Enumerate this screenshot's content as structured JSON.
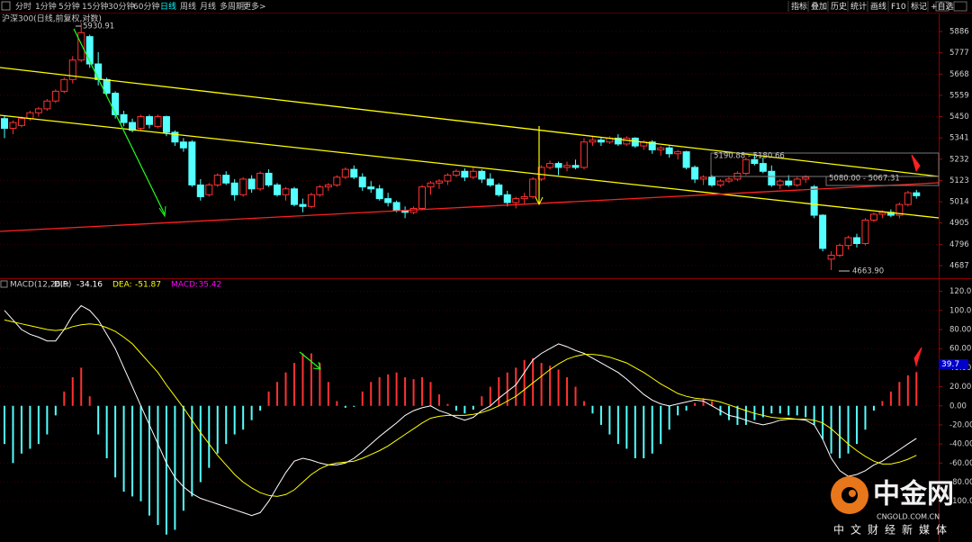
{
  "toolbar": {
    "tabs": [
      "分时",
      "1分钟",
      "5分钟",
      "15分钟",
      "30分钟",
      "60分钟",
      "日线",
      "周线",
      "月线",
      "多周期",
      "更多>"
    ],
    "buttons": [
      "指标",
      "叠加",
      "历史",
      "统计",
      "画线",
      "F10",
      "标记",
      "+自选"
    ]
  },
  "chart_data": [
    {
      "type": "candlestick",
      "title": "沪深300(日线,前复权,对数)",
      "colors": {
        "up": "#ff3232",
        "down": "#54ffff"
      },
      "ylim": [
        4627,
        5983
      ],
      "yticks": [
        5886,
        5777,
        5668,
        5559,
        5450,
        5341,
        5232,
        5123,
        5014,
        4905,
        4796,
        4687
      ],
      "grid": true,
      "annotations": [
        "5930.91",
        "5190.88 - 5180.66",
        "5080.00 - 5067.31",
        "4663.90"
      ],
      "ohlc": [
        [
          5440,
          5455,
          5340,
          5390
        ],
        [
          5390,
          5430,
          5360,
          5420
        ],
        [
          5405,
          5450,
          5395,
          5440
        ],
        [
          5440,
          5480,
          5430,
          5470
        ],
        [
          5470,
          5500,
          5450,
          5490
        ],
        [
          5490,
          5540,
          5480,
          5530
        ],
        [
          5530,
          5590,
          5520,
          5580
        ],
        [
          5580,
          5650,
          5570,
          5640
        ],
        [
          5640,
          5760,
          5620,
          5740
        ],
        [
          5740,
          5931,
          5730,
          5880
        ],
        [
          5860,
          5870,
          5700,
          5720
        ],
        [
          5720,
          5780,
          5610,
          5640
        ],
        [
          5640,
          5650,
          5560,
          5570
        ],
        [
          5570,
          5580,
          5440,
          5460
        ],
        [
          5460,
          5480,
          5400,
          5420
        ],
        [
          5420,
          5440,
          5370,
          5380
        ],
        [
          5390,
          5460,
          5380,
          5450
        ],
        [
          5450,
          5460,
          5390,
          5410
        ],
        [
          5400,
          5460,
          5390,
          5450
        ],
        [
          5450,
          5455,
          5350,
          5370
        ],
        [
          5370,
          5380,
          5300,
          5320
        ],
        [
          5320,
          5340,
          5270,
          5290
        ],
        [
          5320,
          5330,
          5090,
          5100
        ],
        [
          5100,
          5130,
          5020,
          5040
        ],
        [
          5050,
          5110,
          5040,
          5100
        ],
        [
          5100,
          5160,
          5090,
          5150
        ],
        [
          5150,
          5170,
          5100,
          5110
        ],
        [
          5110,
          5130,
          5020,
          5050
        ],
        [
          5050,
          5140,
          5040,
          5130
        ],
        [
          5130,
          5150,
          5060,
          5080
        ],
        [
          5080,
          5170,
          5070,
          5160
        ],
        [
          5160,
          5180,
          5090,
          5100
        ],
        [
          5100,
          5110,
          5040,
          5050
        ],
        [
          5050,
          5090,
          5020,
          5080
        ],
        [
          5080,
          5090,
          4990,
          5000
        ],
        [
          5000,
          5030,
          4960,
          4990
        ],
        [
          4990,
          5060,
          4980,
          5050
        ],
        [
          5050,
          5100,
          5040,
          5090
        ],
        [
          5090,
          5110,
          5070,
          5100
        ],
        [
          5100,
          5150,
          5090,
          5140
        ],
        [
          5140,
          5190,
          5130,
          5180
        ],
        [
          5180,
          5200,
          5130,
          5140
        ],
        [
          5140,
          5160,
          5070,
          5090
        ],
        [
          5090,
          5120,
          5060,
          5080
        ],
        [
          5080,
          5100,
          5020,
          5030
        ],
        [
          5030,
          5060,
          4990,
          5010
        ],
        [
          5010,
          5020,
          4960,
          4970
        ],
        [
          4970,
          4990,
          4930,
          4960
        ],
        [
          4960,
          4990,
          4950,
          4980
        ],
        [
          4980,
          5100,
          4970,
          5090
        ],
        [
          5090,
          5120,
          5050,
          5110
        ],
        [
          5110,
          5130,
          5080,
          5120
        ],
        [
          5120,
          5160,
          5100,
          5150
        ],
        [
          5150,
          5180,
          5140,
          5170
        ],
        [
          5170,
          5185,
          5120,
          5140
        ],
        [
          5140,
          5190,
          5130,
          5170
        ],
        [
          5170,
          5180,
          5110,
          5130
        ],
        [
          5130,
          5160,
          5090,
          5100
        ],
        [
          5100,
          5110,
          5040,
          5050
        ],
        [
          5050,
          5070,
          4990,
          5010
        ],
        [
          5010,
          5040,
          4980,
          5030
        ],
        [
          5030,
          5060,
          5000,
          5040
        ],
        [
          5040,
          5140,
          5030,
          5130
        ],
        [
          5130,
          5200,
          5120,
          5190
        ],
        [
          5190,
          5225,
          5180,
          5210
        ],
        [
          5210,
          5220,
          5150,
          5190
        ],
        [
          5190,
          5220,
          5170,
          5200
        ],
        [
          5200,
          5230,
          5180,
          5190
        ],
        [
          5190,
          5340,
          5180,
          5320
        ],
        [
          5320,
          5350,
          5300,
          5330
        ],
        [
          5330,
          5345,
          5300,
          5320
        ],
        [
          5320,
          5350,
          5310,
          5340
        ],
        [
          5340,
          5360,
          5300,
          5310
        ],
        [
          5310,
          5350,
          5300,
          5340
        ],
        [
          5340,
          5345,
          5290,
          5300
        ],
        [
          5300,
          5330,
          5280,
          5320
        ],
        [
          5320,
          5330,
          5260,
          5280
        ],
        [
          5280,
          5300,
          5250,
          5290
        ],
        [
          5290,
          5300,
          5240,
          5260
        ],
        [
          5260,
          5280,
          5230,
          5270
        ],
        [
          5270,
          5275,
          5180,
          5190
        ],
        [
          5190,
          5200,
          5110,
          5130
        ],
        [
          5130,
          5150,
          5100,
          5140
        ],
        [
          5140,
          5150,
          5090,
          5100
        ],
        [
          5100,
          5130,
          5090,
          5120
        ],
        [
          5120,
          5140,
          5110,
          5130
        ],
        [
          5130,
          5170,
          5120,
          5160
        ],
        [
          5160,
          5240,
          5150,
          5230
        ],
        [
          5230,
          5250,
          5200,
          5210
        ],
        [
          5210,
          5240,
          5160,
          5170
        ],
        [
          5170,
          5200,
          5090,
          5100
        ],
        [
          5100,
          5130,
          5080,
          5120
        ],
        [
          5120,
          5150,
          5090,
          5100
        ],
        [
          5100,
          5140,
          5090,
          5130
        ],
        [
          5130,
          5150,
          5110,
          5140
        ],
        [
          5090,
          5100,
          4930,
          4945
        ],
        [
          4945,
          4950,
          4760,
          4775
        ],
        [
          4720,
          4760,
          4664,
          4740
        ],
        [
          4740,
          4800,
          4730,
          4790
        ],
        [
          4790,
          4840,
          4770,
          4830
        ],
        [
          4830,
          4850,
          4780,
          4800
        ],
        [
          4800,
          4930,
          4790,
          4920
        ],
        [
          4920,
          4960,
          4910,
          4950
        ],
        [
          4950,
          4970,
          4930,
          4960
        ],
        [
          4960,
          4975,
          4935,
          4945
        ],
        [
          4945,
          5010,
          4930,
          5000
        ],
        [
          5000,
          5070,
          4990,
          5060
        ],
        [
          5060,
          5075,
          5030,
          5045
        ]
      ]
    },
    {
      "type": "macd",
      "title": "MACD(12,26,9)",
      "cursor_label": "39.7",
      "ylim": [
        -139,
        131
      ],
      "yticks": [
        {
          "value": 120,
          "label": "120.00"
        },
        {
          "value": 100,
          "label": "100.00"
        },
        {
          "value": 80,
          "label": "80.00"
        },
        {
          "value": 60,
          "label": "60.00"
        },
        {
          "value": 40,
          "label": "40.00"
        },
        {
          "value": 20,
          "label": "20.00"
        },
        {
          "value": 0,
          "label": "0.00"
        },
        {
          "value": -20,
          "label": "-20.00"
        },
        {
          "value": -40,
          "label": "-40.00"
        },
        {
          "value": -60,
          "label": "-60.00"
        },
        {
          "value": -80,
          "label": "-80.00"
        },
        {
          "value": -100,
          "label": "-100.00"
        }
      ],
      "series": [
        {
          "name": "DIF:",
          "kind": "line",
          "color": "#ffffff",
          "values": [
            100,
            90,
            80,
            75,
            72,
            68,
            68,
            80,
            95,
            105,
            100,
            90,
            75,
            60,
            40,
            20,
            0,
            -20,
            -40,
            -60,
            -75,
            -85,
            -92,
            -97,
            -100,
            -103,
            -106,
            -109,
            -112,
            -115,
            -112,
            -100,
            -85,
            -70,
            -58,
            -55,
            -57,
            -60,
            -62,
            -62,
            -60,
            -55,
            -48,
            -40,
            -32,
            -25,
            -18,
            -10,
            -5,
            -2,
            0,
            -5,
            -8,
            -12,
            -15,
            -12,
            -5,
            0,
            8,
            15,
            22,
            35,
            48,
            55,
            60,
            65,
            62,
            58,
            55,
            50,
            45,
            40,
            35,
            28,
            20,
            12,
            6,
            2,
            0,
            2,
            4,
            6,
            5,
            0,
            -5,
            -10,
            -12,
            -15,
            -18,
            -20,
            -18,
            -15,
            -14,
            -14,
            -15,
            -20,
            -35,
            -55,
            -68,
            -74,
            -72,
            -68,
            -62,
            -58,
            -52,
            -46,
            -40,
            -34.16
          ]
        },
        {
          "name": "DEA:",
          "kind": "line",
          "color": "#ffff00",
          "values": [
            90,
            88,
            86,
            84,
            82,
            80,
            79,
            80,
            83,
            85,
            86,
            85,
            82,
            78,
            72,
            65,
            55,
            45,
            35,
            22,
            10,
            -2,
            -15,
            -28,
            -40,
            -52,
            -62,
            -72,
            -80,
            -86,
            -91,
            -94,
            -95,
            -93,
            -88,
            -80,
            -72,
            -66,
            -62,
            -60,
            -59,
            -58,
            -55,
            -51,
            -47,
            -42,
            -36,
            -30,
            -24,
            -18,
            -13,
            -11,
            -10,
            -10,
            -10,
            -9,
            -7,
            -4,
            0,
            5,
            10,
            17,
            24,
            31,
            38,
            44,
            49,
            52,
            54,
            54,
            53,
            51,
            48,
            45,
            40,
            35,
            29,
            23,
            18,
            13,
            10,
            8,
            7,
            6,
            4,
            1,
            -2,
            -5,
            -8,
            -10,
            -12,
            -13,
            -13,
            -14,
            -14,
            -15,
            -18,
            -24,
            -32,
            -40,
            -47,
            -53,
            -58,
            -61,
            -61,
            -59,
            -56,
            -51.87
          ]
        },
        {
          "name": "MACD:",
          "kind": "bar",
          "color": "#ff00ff",
          "colors": {
            "up": "#ff3232",
            "down": "#54ffff"
          },
          "values": [
            -40,
            -60,
            -50,
            -45,
            -40,
            -30,
            -10,
            15,
            30,
            40,
            10,
            -30,
            -55,
            -75,
            -90,
            -95,
            -100,
            -115,
            -125,
            -135,
            -130,
            -110,
            -95,
            -80,
            -65,
            -50,
            -40,
            -30,
            -25,
            -15,
            -5,
            15,
            25,
            35,
            45,
            55,
            55,
            45,
            25,
            5,
            -2,
            -1,
            15,
            25,
            30,
            33,
            35,
            30,
            28,
            30,
            25,
            12,
            2,
            -5,
            -8,
            -4,
            10,
            20,
            30,
            35,
            40,
            48,
            50,
            45,
            42,
            38,
            30,
            20,
            5,
            -8,
            -20,
            -30,
            -40,
            -45,
            -55,
            -55,
            -50,
            -40,
            -25,
            -10,
            -5,
            3,
            8,
            5,
            -10,
            -15,
            -20,
            -20,
            -15,
            -12,
            -8,
            -8,
            -10,
            -10,
            -12,
            -20,
            -35,
            -50,
            -55,
            -50,
            -40,
            -25,
            -5,
            5,
            15,
            25,
            32,
            35.42
          ]
        }
      ]
    }
  ],
  "watermark": {
    "brand": "中金网",
    "site": "CNGOLD.COM.CN",
    "slogan": "中文财经新媒体"
  }
}
